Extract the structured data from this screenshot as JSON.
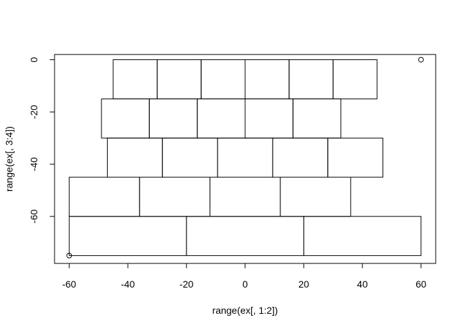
{
  "chart_data": {
    "type": "scatter",
    "title": "",
    "xlabel": "range(ex[, 1:2])",
    "ylabel": "range(ex[, 3:4])",
    "xlim": [
      -65,
      65
    ],
    "ylim": [
      -78,
      2
    ],
    "x_ticks": [
      -60,
      -40,
      -20,
      0,
      20,
      40,
      60
    ],
    "x_tick_labels": [
      "-60",
      "-40",
      "-20",
      "0",
      "20",
      "40",
      "60"
    ],
    "y_ticks": [
      0,
      -20,
      -40,
      -60
    ],
    "y_tick_labels": [
      "0",
      "-20",
      "-40",
      "-60"
    ],
    "grid": false,
    "points": [
      {
        "x": -60,
        "y": -75
      },
      {
        "x": 60,
        "y": 0
      }
    ],
    "rectangles": [
      {
        "x0": -45,
        "x1": -30,
        "y0": -15,
        "y1": 0
      },
      {
        "x0": -30,
        "x1": -15,
        "y0": -15,
        "y1": 0
      },
      {
        "x0": -15,
        "x1": 0,
        "y0": -15,
        "y1": 0
      },
      {
        "x0": 0,
        "x1": 15,
        "y0": -15,
        "y1": 0
      },
      {
        "x0": 15,
        "x1": 30,
        "y0": -15,
        "y1": 0
      },
      {
        "x0": 30,
        "x1": 45,
        "y0": -15,
        "y1": 0
      },
      {
        "x0": -49,
        "x1": -32.67,
        "y0": -30,
        "y1": -15
      },
      {
        "x0": -32.67,
        "x1": -16.33,
        "y0": -30,
        "y1": -15
      },
      {
        "x0": -16.33,
        "x1": 0,
        "y0": -30,
        "y1": -15
      },
      {
        "x0": 0,
        "x1": 16.33,
        "y0": -30,
        "y1": -15
      },
      {
        "x0": 16.33,
        "x1": 32.67,
        "y0": -30,
        "y1": -15
      },
      {
        "x0": -47,
        "x1": -28.2,
        "y0": -45,
        "y1": -30
      },
      {
        "x0": -28.2,
        "x1": -9.4,
        "y0": -45,
        "y1": -30
      },
      {
        "x0": -9.4,
        "x1": 9.4,
        "y0": -45,
        "y1": -30
      },
      {
        "x0": 9.4,
        "x1": 28.2,
        "y0": -45,
        "y1": -30
      },
      {
        "x0": 28.2,
        "x1": 47,
        "y0": -45,
        "y1": -30
      },
      {
        "x0": -60,
        "x1": -36,
        "y0": -60,
        "y1": -45
      },
      {
        "x0": -36,
        "x1": -12,
        "y0": -60,
        "y1": -45
      },
      {
        "x0": -12,
        "x1": 12,
        "y0": -60,
        "y1": -45
      },
      {
        "x0": 12,
        "x1": 36,
        "y0": -60,
        "y1": -45
      },
      {
        "x0": -60,
        "x1": -20,
        "y0": -75,
        "y1": -60
      },
      {
        "x0": -20,
        "x1": 20,
        "y0": -75,
        "y1": -60
      },
      {
        "x0": 20,
        "x1": 60,
        "y0": -75,
        "y1": -60
      }
    ]
  }
}
